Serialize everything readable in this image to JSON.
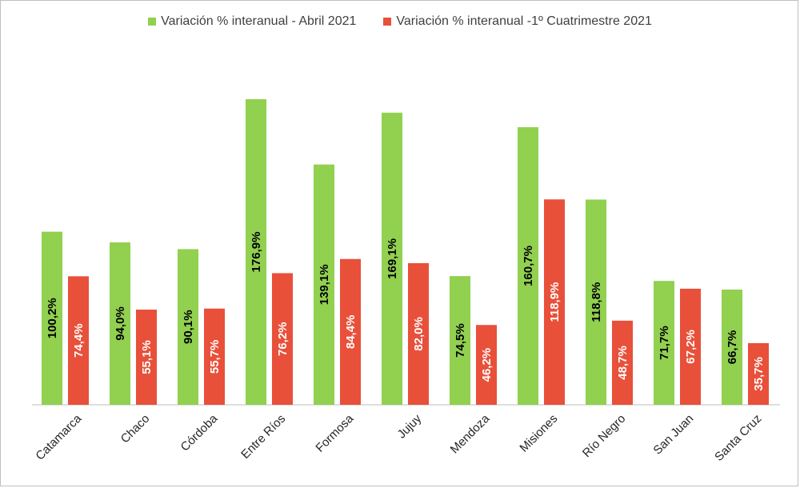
{
  "chart_data": {
    "type": "bar",
    "title": "",
    "xlabel": "",
    "ylabel": "",
    "ylim": [
      0,
      195
    ],
    "grid": false,
    "legend_position": "top-center",
    "categories": [
      "Catamarca",
      "Chaco",
      "Córdoba",
      "Entre Ríos",
      "Formosa",
      "Jujuy",
      "Mendoza",
      "Misiones",
      "Río Negro",
      "San Juan",
      "Santa Cruz"
    ],
    "series": [
      {
        "name": "Variación % interanual - Abril 2021",
        "color": "#92d050",
        "label_color": "#000000",
        "values": [
          100.2,
          94.0,
          90.1,
          176.9,
          139.1,
          169.1,
          74.5,
          160.7,
          118.8,
          71.7,
          66.7
        ],
        "labels": [
          "100,2%",
          "94,0%",
          "90,1%",
          "176,9%",
          "139,1%",
          "169,1%",
          "74,5%",
          "160,7%",
          "118,8%",
          "71,7%",
          "66,7%"
        ]
      },
      {
        "name": "Variación % interanual -1º Cuatrimestre 2021",
        "color": "#e8503a",
        "label_color": "#ffffff",
        "values": [
          74.4,
          55.1,
          55.7,
          76.2,
          84.4,
          82.0,
          46.2,
          118.9,
          48.7,
          67.2,
          35.7
        ],
        "labels": [
          "74,4%",
          "55,1%",
          "55,7%",
          "76,2%",
          "84,4%",
          "82,0%",
          "46,2%",
          "118,9%",
          "48,7%",
          "67,2%",
          "35,7%"
        ]
      }
    ]
  }
}
